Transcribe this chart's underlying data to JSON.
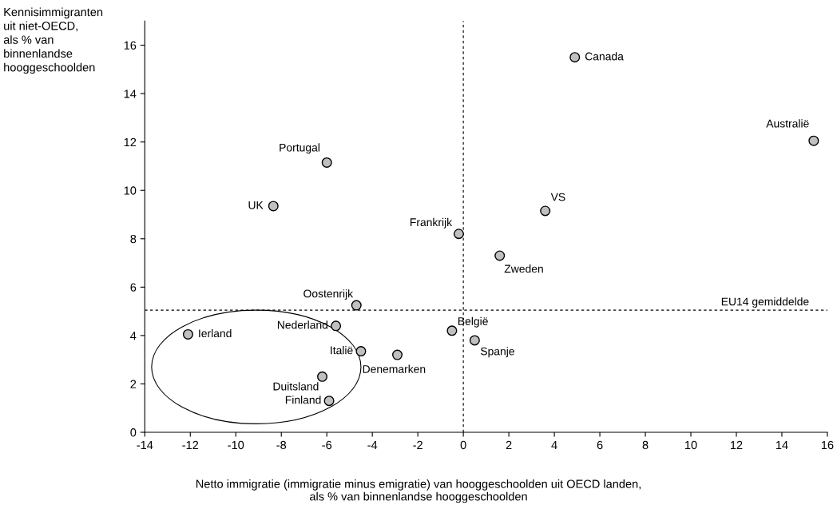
{
  "chart_data": {
    "type": "scatter",
    "xlabel": "Netto immigratie (immigratie minus emigratie) van hooggeschoolden uit OECD landen,\nals % van binnenlandse hooggeschoolden",
    "ylabel": "Kennisimmigranten\nuit niet-OECD,\nals % van\nbinnenlandse\nhooggeschoolden",
    "x": [
      4.9,
      15.4,
      -6.0,
      -8.35,
      3.6,
      -0.2,
      1.6,
      -4.7,
      -12.1,
      -5.6,
      -4.5,
      -2.9,
      -0.5,
      0.5,
      -6.2,
      -5.9
    ],
    "series": [
      {
        "color": "#c0c0c0",
        "values": [
          15.5,
          12.05,
          11.15,
          9.35,
          9.15,
          8.2,
          7.3,
          5.25,
          4.05,
          4.4,
          3.35,
          3.2,
          4.2,
          3.8,
          2.3,
          1.3
        ]
      }
    ],
    "annotations": [
      {
        "text": "Canada",
        "x": 4.9,
        "y": 15.5
      },
      {
        "text": "Australië",
        "x": 15.4,
        "y": 12.05
      },
      {
        "text": "Portugal",
        "x": -6.0,
        "y": 11.15
      },
      {
        "text": "UK",
        "x": -8.35,
        "y": 9.35
      },
      {
        "text": "VS",
        "x": 3.6,
        "y": 9.15
      },
      {
        "text": "Frankrijk",
        "x": -0.2,
        "y": 8.2
      },
      {
        "text": "Zweden",
        "x": 1.6,
        "y": 7.3
      },
      {
        "text": "Oostenrijk",
        "x": -4.7,
        "y": 5.25
      },
      {
        "text": "Ierland",
        "x": -12.1,
        "y": 4.05
      },
      {
        "text": "Nederland",
        "x": -5.6,
        "y": 4.4
      },
      {
        "text": "Italië",
        "x": -4.5,
        "y": 3.35
      },
      {
        "text": "Denemarken",
        "x": -2.9,
        "y": 3.2
      },
      {
        "text": "België",
        "x": -0.5,
        "y": 4.2
      },
      {
        "text": "Spanje",
        "x": 0.5,
        "y": 3.8
      },
      {
        "text": "Duitsland",
        "x": -6.2,
        "y": 2.3
      },
      {
        "text": "Finland",
        "x": -5.9,
        "y": 1.3
      }
    ],
    "ref_lines": [
      {
        "axis": "x",
        "value": 0,
        "line_style": "dashed",
        "color": "#000000"
      },
      {
        "axis": "y",
        "value": 5.05,
        "label": "EU14 gemiddelde",
        "line_style": "dashed",
        "color": "#000000"
      }
    ],
    "xlim": [
      -14,
      16
    ],
    "xticks": [
      -14,
      -12,
      -10,
      -8,
      -6,
      -4,
      -2,
      0,
      2,
      4,
      6,
      8,
      10,
      12,
      14,
      16
    ],
    "ylim": [
      0,
      17
    ],
    "yticks": [
      0,
      2,
      4,
      6,
      8,
      10,
      12,
      14,
      16
    ],
    "marker": "circle",
    "grid": false,
    "legend": false
  }
}
